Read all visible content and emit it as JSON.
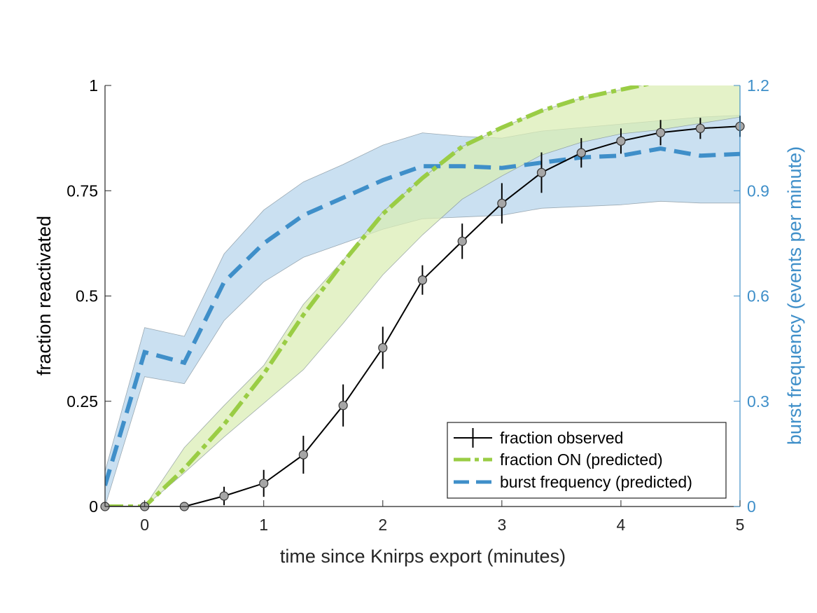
{
  "chart_data": {
    "type": "line",
    "xlabel": "time since Knirps export (minutes)",
    "ylabel_left": "fraction reactivated",
    "ylabel_right": "burst frequency (events per minute)",
    "xlim": [
      -0.333,
      5
    ],
    "ylim_left": [
      0,
      1
    ],
    "ylim_right": [
      0,
      1.2
    ],
    "x_ticks": [
      0,
      1,
      2,
      3,
      4,
      5
    ],
    "y_ticks_left": [
      0,
      0.25,
      0.5,
      0.75,
      1
    ],
    "y_ticks_right": [
      0,
      0.3,
      0.6,
      0.9,
      1.2
    ],
    "grid": false,
    "legend_position": "bottom-right",
    "colors": {
      "observed": "#000000",
      "fraction_on": "#9ACD45",
      "fraction_on_band": "#D9EDB3",
      "burst": "#3F8FC9",
      "burst_band": "#B5D4EC",
      "right_axis": "#3F8FC9"
    },
    "series": [
      {
        "name": "fraction observed",
        "axis": "left",
        "style": "solid-with-markers-and-errorbars",
        "x": [
          -0.333,
          0,
          0.333,
          0.667,
          1,
          1.333,
          1.667,
          2,
          2.333,
          2.667,
          3,
          3.333,
          3.667,
          4,
          4.333,
          4.667,
          5
        ],
        "y": [
          0,
          0,
          0,
          0.025,
          0.055,
          0.123,
          0.24,
          0.377,
          0.538,
          0.63,
          0.72,
          0.793,
          0.84,
          0.868,
          0.888,
          0.898,
          0.903
        ],
        "err": [
          0,
          0.01,
          0,
          0.022,
          0.032,
          0.045,
          0.05,
          0.05,
          0.035,
          0.042,
          0.048,
          0.048,
          0.035,
          0.03,
          0.03,
          0.025,
          0.025
        ]
      },
      {
        "name": "fraction ON (predicted)",
        "axis": "left",
        "style": "dash-dot",
        "x": [
          -0.333,
          0,
          0.333,
          0.667,
          1,
          1.333,
          1.667,
          2,
          2.333,
          2.667,
          3,
          3.333,
          3.667,
          4,
          4.333,
          4.667,
          5
        ],
        "y": [
          0,
          0,
          0.09,
          0.195,
          0.315,
          0.455,
          0.58,
          0.695,
          0.78,
          0.855,
          0.9,
          0.94,
          0.97,
          0.99,
          1.01,
          1.025,
          1.04
        ],
        "lower": [
          0,
          0,
          0.08,
          0.165,
          0.245,
          0.325,
          0.435,
          0.55,
          0.645,
          0.73,
          0.785,
          0.835,
          0.865,
          0.885,
          0.895,
          0.91,
          0.925
        ],
        "upper": [
          0,
          0,
          0.14,
          0.24,
          0.335,
          0.48,
          0.585,
          0.7,
          0.78,
          0.855,
          0.9,
          0.94,
          0.97,
          0.99,
          1.01,
          1.025,
          1.04
        ]
      },
      {
        "name": "burst frequency (predicted)",
        "axis": "right",
        "style": "dashed",
        "x": [
          -0.333,
          0,
          0.333,
          0.667,
          1,
          1.333,
          1.667,
          2,
          2.333,
          2.667,
          3,
          3.333,
          3.667,
          4,
          4.333,
          4.667,
          5
        ],
        "y": [
          0.06,
          0.44,
          0.41,
          0.64,
          0.75,
          0.83,
          0.88,
          0.93,
          0.97,
          0.97,
          0.965,
          0.98,
          0.995,
          1.0,
          1.02,
          1.0,
          1.005
        ],
        "lower": [
          0.0,
          0.37,
          0.35,
          0.53,
          0.64,
          0.71,
          0.75,
          0.79,
          0.82,
          0.825,
          0.83,
          0.85,
          0.855,
          0.86,
          0.87,
          0.865,
          0.865
        ],
        "upper": [
          0.1,
          0.51,
          0.485,
          0.72,
          0.845,
          0.925,
          0.975,
          1.03,
          1.065,
          1.055,
          1.05,
          1.07,
          1.08,
          1.09,
          1.1,
          1.11,
          1.115
        ]
      }
    ]
  }
}
